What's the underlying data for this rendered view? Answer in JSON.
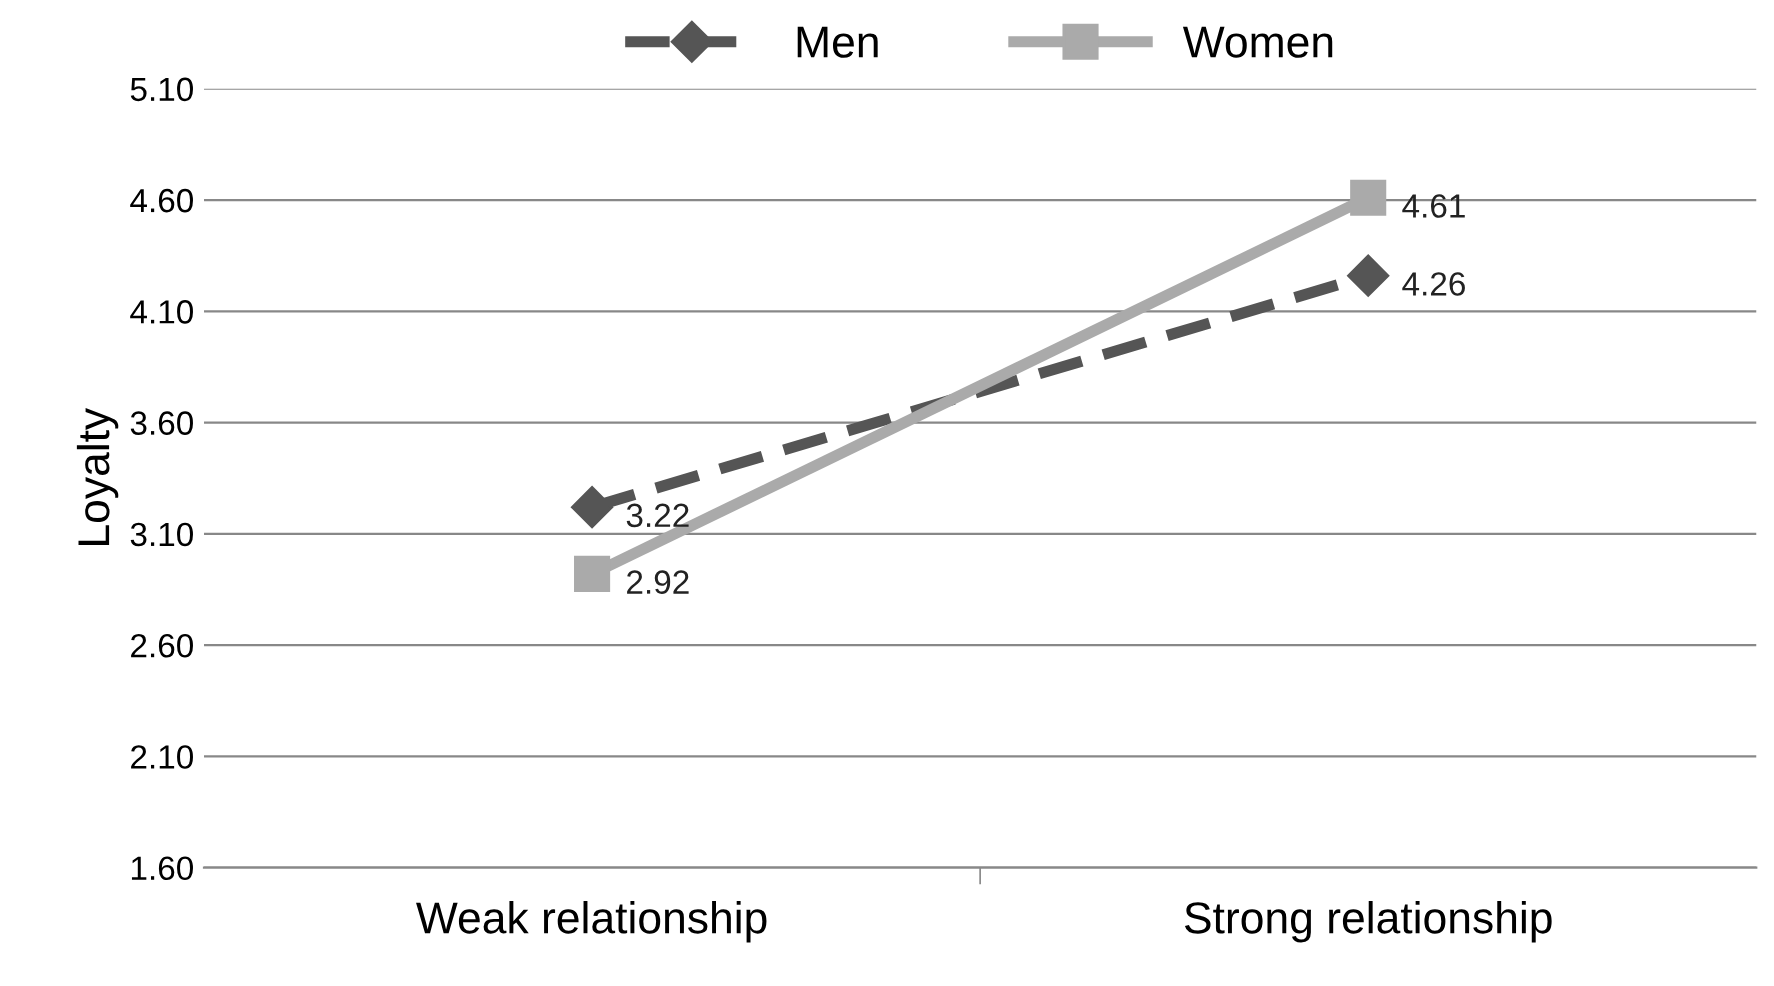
{
  "chart_data": {
    "type": "line",
    "ylabel": "Loyalty",
    "categories": [
      "Weak relationship",
      "Strong relationship"
    ],
    "series": [
      {
        "name": "Men",
        "color": "#555555",
        "values": [
          3.22,
          4.26
        ],
        "marker": "diamond",
        "line_style": "dashed"
      },
      {
        "name": "Women",
        "color": "#aaaaaa",
        "values": [
          2.92,
          4.61
        ],
        "marker": "square",
        "line_style": "solid"
      }
    ],
    "ylim": [
      1.6,
      5.1
    ],
    "yticks": [
      {
        "value": 1.6,
        "label": "1.60"
      },
      {
        "value": 2.1,
        "label": "2.10"
      },
      {
        "value": 2.6,
        "label": "2.60"
      },
      {
        "value": 3.1,
        "label": "3.10"
      },
      {
        "value": 3.6,
        "label": "3.60"
      },
      {
        "value": 4.1,
        "label": "4.10"
      },
      {
        "value": 4.6,
        "label": "4.60"
      },
      {
        "value": 5.1,
        "label": "5.10"
      }
    ],
    "grid": "y",
    "legend": "top",
    "data_labels": true
  }
}
